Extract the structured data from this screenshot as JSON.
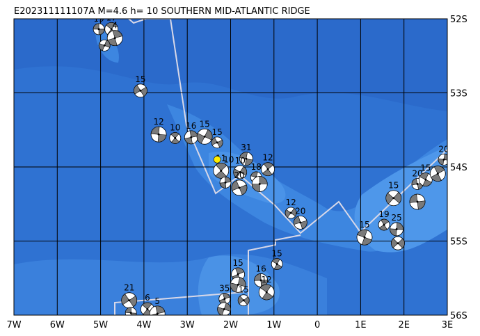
{
  "chart_data": {
    "type": "map",
    "title": "E202311111107A  M=4.6  h= 10  SOUTHERN MID-ATLANTIC RIDGE",
    "xlim": [
      -7,
      3
    ],
    "ylim": [
      -56,
      -52
    ],
    "xticks": [
      {
        "value": -7,
        "label": "7W"
      },
      {
        "value": -6,
        "label": "6W"
      },
      {
        "value": -5,
        "label": "5W"
      },
      {
        "value": -4,
        "label": "4W"
      },
      {
        "value": -3,
        "label": "3W"
      },
      {
        "value": -2,
        "label": "2W"
      },
      {
        "value": -1,
        "label": "1W"
      },
      0,
      {
        "value": 1,
        "label": "1E"
      },
      {
        "value": 2,
        "label": "2E"
      },
      {
        "value": 3,
        "label": "3E"
      }
    ],
    "yticks": [
      {
        "value": -52,
        "label": "52S"
      },
      {
        "value": -53,
        "label": "53S"
      },
      {
        "value": -54,
        "label": "54S"
      },
      {
        "value": -55,
        "label": "55S"
      },
      {
        "value": -56,
        "label": "56S"
      }
    ],
    "grid": true,
    "color": "#7a7a7a",
    "x": [
      -5.04,
      -4.75,
      -4.67,
      -4.91,
      -4.08,
      -3.66,
      -3.28,
      -2.91,
      -2.6,
      -2.31,
      -1.64,
      -2.22,
      -2.12,
      -1.78,
      -1.8,
      -1.41,
      -1.14,
      -1.33,
      -0.61,
      -0.39,
      1.09,
      1.54,
      1.83,
      1.76,
      2.31,
      2.5,
      2.78,
      2.92,
      1.86,
      2.31,
      -0.93,
      -1.83,
      -1.83,
      -1.7,
      -1.3,
      -1.17,
      -2.14,
      -2.15,
      -4.34,
      -4.3,
      -3.92,
      -3.69
    ],
    "values": [
      -52.14,
      -52.14,
      -52.26,
      -52.36,
      -52.97,
      -53.56,
      -53.61,
      -53.6,
      -53.59,
      -53.67,
      -53.89,
      -54.05,
      -54.21,
      -54.07,
      -54.28,
      -54.14,
      -54.03,
      -54.23,
      -54.62,
      -54.75,
      -54.95,
      -54.78,
      -54.84,
      -54.42,
      -54.23,
      -54.17,
      -54.09,
      -53.9,
      -55.03,
      -54.47,
      -55.31,
      -55.45,
      -55.59,
      -55.8,
      -55.53,
      -55.69,
      -55.78,
      -55.92,
      -55.8,
      -55.97,
      -55.92,
      -55.98
    ],
    "labels": [
      "19",
      "17",
      "4",
      null,
      "15",
      "12",
      "10",
      "16",
      "15",
      "15",
      "31",
      "11",
      null,
      "10",
      "20",
      "18",
      "12",
      null,
      "12",
      "20",
      "15",
      "19",
      "25",
      "15",
      "20",
      "15",
      null,
      "20",
      null,
      null,
      "15",
      "15",
      null,
      "15",
      "16",
      "12",
      "35",
      null,
      "21",
      null,
      "6",
      "5"
    ],
    "main_event": {
      "x": -2.31,
      "y": -53.9,
      "label": "10",
      "color": "#ffee00"
    }
  }
}
